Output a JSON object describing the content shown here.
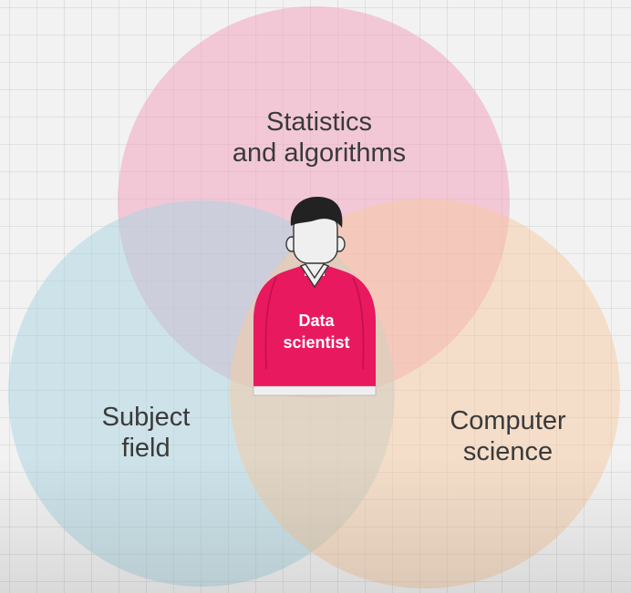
{
  "diagram": {
    "circles": [
      {
        "id": "statistics",
        "label_lines": [
          "Statistics",
          "and algorithms"
        ],
        "color": "#f2a5c1"
      },
      {
        "id": "subject",
        "label_lines": [
          "Subject",
          "field"
        ],
        "color": "#a7d3df"
      },
      {
        "id": "computer_science",
        "label_lines": [
          "Computer",
          "science"
        ],
        "color": "#f5c9a1"
      }
    ],
    "center": {
      "label_lines": [
        "Data",
        "scientist"
      ],
      "shirt_color": "#e8195f",
      "skin_color": "#efefef",
      "hair_color": "#222222"
    },
    "text_color": "#3a3a3a"
  }
}
